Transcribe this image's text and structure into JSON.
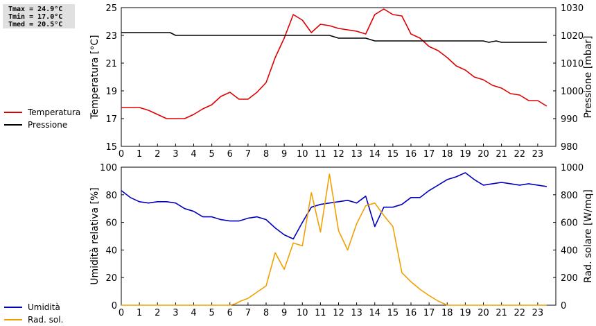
{
  "stats": {
    "tmax": "Tmax = 24.9°C",
    "tmin": "Tmin = 17.0°C",
    "tmed": "Tmed = 20.5°C"
  },
  "legend_top": [
    {
      "label": "Temperatura",
      "color": "#dd0000"
    },
    {
      "label": "Pressione",
      "color": "#000000"
    }
  ],
  "legend_bottom": [
    {
      "label": "Umidità",
      "color": "#0000bb"
    },
    {
      "label": "Rad. sol.",
      "color": "#f0a000"
    }
  ],
  "chart_data": [
    {
      "type": "line",
      "xlim": [
        0,
        24
      ],
      "xticks": [
        "0",
        "1",
        "2",
        "3",
        "4",
        "5",
        "6",
        "7",
        "8",
        "9",
        "10",
        "11",
        "12",
        "13",
        "14",
        "15",
        "16",
        "17",
        "18",
        "19",
        "20",
        "21",
        "22",
        "23"
      ],
      "ylabel_left": "Temperatura [°C]",
      "ylim_left": [
        15,
        25
      ],
      "yticks_left": [
        "15",
        "17",
        "19",
        "21",
        "23",
        "25"
      ],
      "ylabel_right": "Pressione [mbar]",
      "ylim_right": [
        980,
        1030
      ],
      "yticks_right": [
        "980",
        "990",
        "1000",
        "1010",
        "1020",
        "1030"
      ],
      "series": [
        {
          "name": "Temperatura",
          "axis": "left",
          "color": "#dd0000",
          "x": [
            0,
            1,
            1.5,
            2,
            2.5,
            3,
            3.5,
            4,
            4.5,
            5,
            5.5,
            6,
            6.5,
            7,
            7.5,
            8,
            8.5,
            9,
            9.5,
            10,
            10.5,
            11,
            11.5,
            12,
            12.5,
            13,
            13.5,
            14,
            14.5,
            15,
            15.5,
            16,
            16.5,
            17,
            17.5,
            18,
            18.5,
            19,
            19.5,
            20,
            20.5,
            21,
            21.5,
            22,
            22.5,
            23,
            23.5
          ],
          "y": [
            17.8,
            17.8,
            17.6,
            17.3,
            17.0,
            17.0,
            17.0,
            17.3,
            17.7,
            18.0,
            18.6,
            18.9,
            18.4,
            18.4,
            18.9,
            19.6,
            21.4,
            22.8,
            24.5,
            24.1,
            23.2,
            23.8,
            23.7,
            23.5,
            23.4,
            23.3,
            23.1,
            24.5,
            24.9,
            24.5,
            24.4,
            23.1,
            22.8,
            22.2,
            21.9,
            21.4,
            20.8,
            20.5,
            20.0,
            19.8,
            19.4,
            19.2,
            18.8,
            18.7,
            18.3,
            18.3,
            17.9
          ]
        },
        {
          "name": "Pressione",
          "axis": "right",
          "color": "#000000",
          "x": [
            0,
            2.7,
            3,
            11.5,
            12,
            13.5,
            14,
            20,
            20.3,
            20.7,
            21,
            21.5,
            23.5
          ],
          "y": [
            1021,
            1021,
            1020,
            1020,
            1019,
            1019,
            1018,
            1018,
            1017.5,
            1018,
            1017.5,
            1017.5,
            1017.5
          ]
        }
      ]
    },
    {
      "type": "line",
      "xlim": [
        0,
        24
      ],
      "xticks": [
        "0",
        "1",
        "2",
        "3",
        "4",
        "5",
        "6",
        "7",
        "8",
        "9",
        "10",
        "11",
        "12",
        "13",
        "14",
        "15",
        "16",
        "17",
        "18",
        "19",
        "20",
        "21",
        "22",
        "23"
      ],
      "ylabel_left": "Umidità relativa [%]",
      "ylim_left": [
        0,
        100
      ],
      "yticks_left": [
        "0",
        "20",
        "40",
        "60",
        "80",
        "100"
      ],
      "ylabel_right": "Rad. solare [W/mq]",
      "ylim_right": [
        0,
        1000
      ],
      "yticks_right": [
        "0",
        "200",
        "400",
        "600",
        "800",
        "1000"
      ],
      "series": [
        {
          "name": "Umidità",
          "axis": "left",
          "color": "#0000bb",
          "x": [
            0,
            0.5,
            1,
            1.5,
            2,
            2.5,
            3,
            3.5,
            4,
            4.5,
            5,
            5.5,
            6,
            6.5,
            7,
            7.5,
            8,
            8.5,
            9,
            9.5,
            10,
            10.5,
            11,
            11.5,
            12,
            12.5,
            13,
            13.5,
            14,
            14.5,
            15,
            15.5,
            16,
            16.5,
            17,
            17.5,
            18,
            18.5,
            19,
            19.5,
            20,
            20.5,
            21,
            21.5,
            22,
            22.5,
            23,
            23.5
          ],
          "y": [
            83,
            78,
            75,
            74,
            75,
            75,
            74,
            70,
            68,
            64,
            64,
            62,
            61,
            61,
            63,
            64,
            62,
            56,
            51,
            48,
            60,
            71,
            73,
            74,
            75,
            76,
            74,
            79,
            57,
            71,
            71,
            73,
            78,
            78,
            83,
            87,
            91,
            93,
            96,
            91,
            87,
            88,
            89,
            88,
            87,
            88,
            87,
            86
          ]
        },
        {
          "name": "Rad. sol.",
          "axis": "right",
          "color": "#f0a000",
          "x": [
            0,
            1,
            2,
            3,
            4,
            5,
            6,
            6.3,
            6.6,
            7,
            7.5,
            8,
            8.5,
            9,
            9.5,
            10,
            10.5,
            11,
            11.5,
            12,
            12.5,
            13,
            13.5,
            14,
            14.5,
            15,
            15.5,
            16,
            16.5,
            17,
            17.5,
            18,
            19,
            20,
            21,
            22,
            23,
            23.5
          ],
          "y": [
            0,
            0,
            0,
            0,
            0,
            0,
            0,
            10,
            30,
            50,
            95,
            140,
            380,
            260,
            450,
            430,
            815,
            530,
            950,
            540,
            400,
            590,
            720,
            740,
            650,
            570,
            235,
            170,
            115,
            70,
            30,
            0,
            0,
            0,
            0,
            0,
            0,
            0
          ]
        }
      ]
    }
  ]
}
